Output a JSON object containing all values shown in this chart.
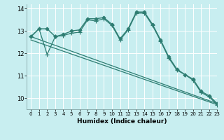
{
  "xlabel": "Humidex (Indice chaleur)",
  "background_color": "#c8eef0",
  "grid_color": "#ffffff",
  "line_color": "#2e7d72",
  "xlim": [
    -0.5,
    23
  ],
  "ylim": [
    9.5,
    14.2
  ],
  "yticks": [
    10,
    11,
    12,
    13,
    14
  ],
  "xticks": [
    0,
    1,
    2,
    3,
    4,
    5,
    6,
    7,
    8,
    9,
    10,
    11,
    12,
    13,
    14,
    15,
    16,
    17,
    18,
    19,
    20,
    21,
    22,
    23
  ],
  "series": [
    {
      "x": [
        0,
        1,
        2,
        3,
        4,
        5,
        6,
        7,
        8,
        9,
        10,
        11,
        12,
        13,
        14,
        15,
        16,
        17,
        18,
        19,
        20,
        21,
        22,
        23
      ],
      "y": [
        12.75,
        13.1,
        13.1,
        12.75,
        12.85,
        13.0,
        13.05,
        13.55,
        13.55,
        13.6,
        13.3,
        12.65,
        13.1,
        13.85,
        13.85,
        13.3,
        12.6,
        11.85,
        11.3,
        11.05,
        10.85,
        10.3,
        10.1,
        9.75
      ],
      "marker": "D",
      "markersize": 2.5,
      "linewidth": 1.0
    },
    {
      "x": [
        0,
        1,
        2,
        3,
        4,
        5,
        6,
        7,
        8,
        9,
        10,
        11,
        12,
        13,
        14,
        15,
        16,
        17,
        18,
        19,
        20,
        21,
        22,
        23
      ],
      "y": [
        12.75,
        13.1,
        11.95,
        12.75,
        12.8,
        12.9,
        12.95,
        13.5,
        13.45,
        13.55,
        13.25,
        12.6,
        13.05,
        13.8,
        13.8,
        13.25,
        12.55,
        11.8,
        11.25,
        11.05,
        10.8,
        10.25,
        10.05,
        9.7
      ],
      "marker": "+",
      "markersize": 4,
      "linewidth": 0.9
    },
    {
      "x": [
        0,
        23
      ],
      "y": [
        12.75,
        9.75
      ],
      "marker": null,
      "markersize": 0,
      "linewidth": 0.9
    },
    {
      "x": [
        0,
        23
      ],
      "y": [
        12.6,
        9.7
      ],
      "marker": null,
      "markersize": 0,
      "linewidth": 0.9
    }
  ]
}
